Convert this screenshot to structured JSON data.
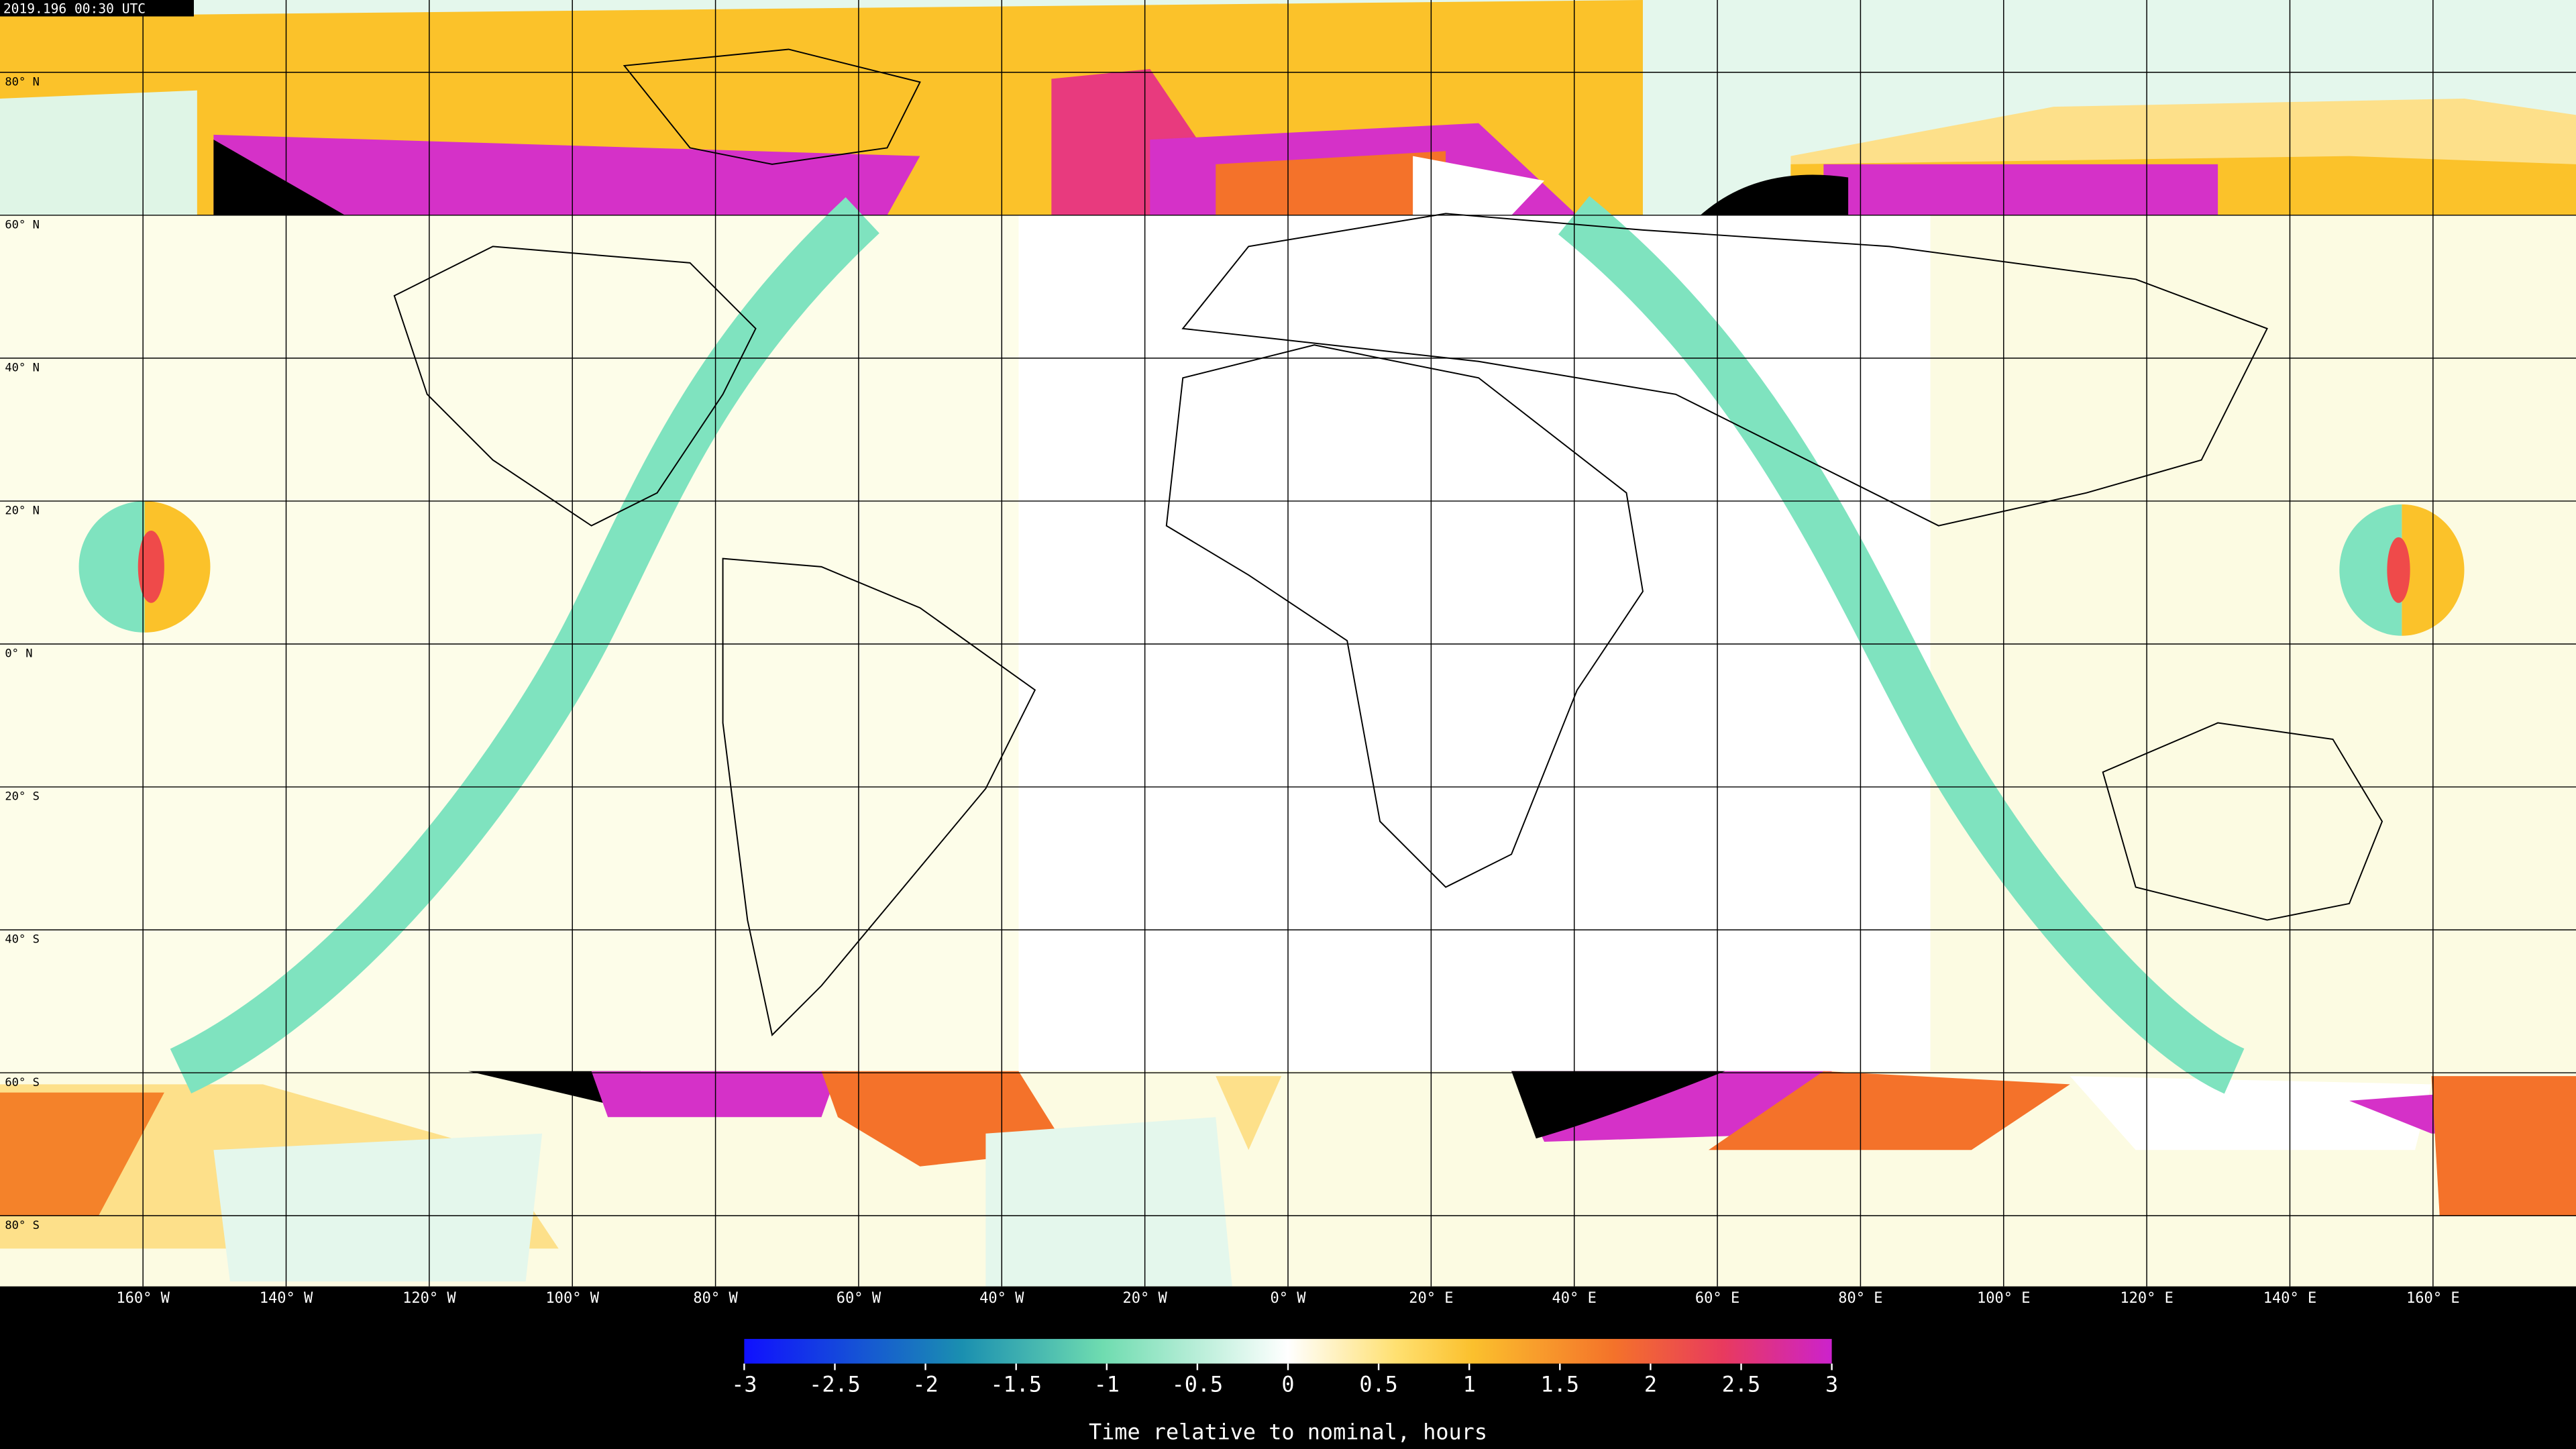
{
  "timestamp": "2019.196 00:30 UTC",
  "map": {
    "lat_labels": [
      "80° N",
      "60° N",
      "40° N",
      "20° N",
      "0° N",
      "20° S",
      "40° S",
      "60° S",
      "80° S"
    ],
    "lon_labels": [
      "160° W",
      "140° W",
      "120° W",
      "100° W",
      "80° W",
      "60° W",
      "40° W",
      "20° W",
      "0° W",
      "20° E",
      "40° E",
      "60° E",
      "80° E",
      "100° E",
      "120° E",
      "140° E",
      "160° E"
    ]
  },
  "colorbar": {
    "label": "Time relative to nominal, hours",
    "range": [
      -3,
      3
    ],
    "ticks": [
      -3,
      -2.5,
      -2,
      -1.5,
      -1,
      -0.5,
      0,
      0.5,
      1,
      1.5,
      2,
      2.5,
      3
    ]
  }
}
